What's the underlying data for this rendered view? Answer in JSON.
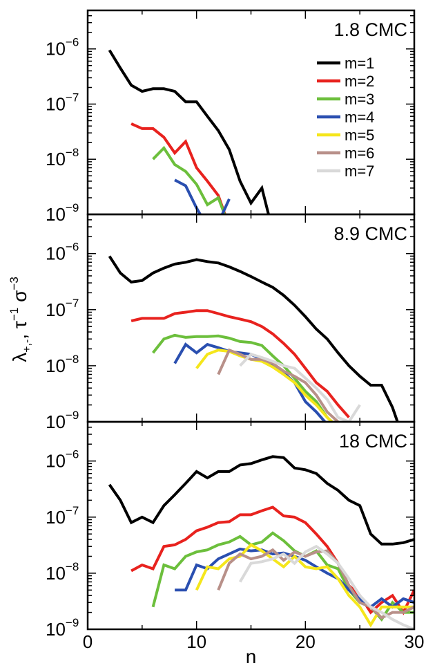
{
  "chart_data": {
    "type": "line",
    "xlabel": "n",
    "ylabel": {
      "base": "λ",
      "sub": "+,-",
      "unit1": "τ",
      "unit1_exp": "−1",
      "unit2": "σ",
      "unit2_exp": "−3"
    },
    "xlim": [
      0,
      30
    ],
    "xticks": [
      "0",
      "10",
      "20",
      "30"
    ],
    "ylim": [
      1e-09,
      5e-06
    ],
    "yscale": "log",
    "ytick_base": "10",
    "ytick_exponents": [
      "-9",
      "-8",
      "-7",
      "-6"
    ],
    "legend": {
      "placement": "top-right of top panel",
      "entries": [
        "m=1",
        "m=2",
        "m=3",
        "m=4",
        "m=5",
        "m=6",
        "m=7"
      ]
    },
    "series_colors": [
      "#000000",
      "#e8221e",
      "#6cbf3c",
      "#2a4fb0",
      "#f5e61b",
      "#b89089",
      "#d9d9d9"
    ],
    "panels": [
      {
        "label": "1.8 CMC",
        "series": [
          {
            "name": "m=1",
            "x": [
              2,
              3,
              4,
              5,
              6,
              7,
              8,
              9,
              10,
              11,
              12,
              13,
              14,
              15,
              16,
              17
            ],
            "y": [
              9.5e-07,
              4.5e-07,
              2.2e-07,
              1.7e-07,
              1.9e-07,
              1.9e-07,
              1.7e-07,
              1.1e-07,
              1.1e-07,
              6e-08,
              3.3e-08,
              1.5e-08,
              4e-09,
              1.6e-09,
              3e-09,
              5e-10
            ]
          },
          {
            "name": "m=2",
            "x": [
              4,
              5,
              6,
              7,
              8,
              9,
              10,
              11,
              12,
              13
            ],
            "y": [
              4.4e-08,
              3.6e-08,
              3.6e-08,
              2.5e-08,
              1.3e-08,
              2.1e-08,
              7e-09,
              4e-09,
              2.2e-09,
              6e-10
            ]
          },
          {
            "name": "m=3",
            "x": [
              6,
              7,
              8,
              9,
              10,
              11,
              12,
              13
            ],
            "y": [
              1e-08,
              1.6e-08,
              8e-09,
              6e-09,
              3.5e-09,
              1.5e-09,
              2e-09,
              6e-10
            ]
          },
          {
            "name": "m=4",
            "x": [
              8,
              9,
              10,
              11,
              12,
              13
            ],
            "y": [
              4.2e-09,
              3.3e-09,
              1.3e-09,
              6e-10,
              7e-10,
              1.9e-09
            ]
          }
        ]
      },
      {
        "label": "8.9 CMC",
        "series": [
          {
            "name": "m=1",
            "x": [
              2,
              3,
              4,
              5,
              6,
              7,
              8,
              9,
              10,
              11,
              12,
              13,
              14,
              15,
              16,
              17,
              18,
              19,
              20,
              21,
              22,
              23,
              24,
              25,
              26,
              27,
              28,
              29
            ],
            "y": [
              9e-07,
              4.5e-07,
              3.1e-07,
              3.3e-07,
              4.5e-07,
              5.5e-07,
              6.5e-07,
              7e-07,
              7.8e-07,
              7.2e-07,
              6.8e-07,
              5.8e-07,
              4.8e-07,
              3.9e-07,
              3.1e-07,
              2.5e-07,
              1.8e-07,
              1.2e-07,
              7.5e-08,
              4.5e-08,
              3e-08,
              1.7e-08,
              1e-08,
              6.5e-09,
              4.5e-09,
              4.5e-09,
              1.8e-09,
              5e-10
            ]
          },
          {
            "name": "m=2",
            "x": [
              4,
              5,
              6,
              7,
              8,
              9,
              10,
              11,
              12,
              13,
              14,
              15,
              16,
              17,
              18,
              19,
              20,
              21,
              22,
              23,
              24
            ],
            "y": [
              6.3e-08,
              7e-08,
              7e-08,
              7e-08,
              8.5e-08,
              9e-08,
              9.6e-08,
              9.6e-08,
              8.5e-08,
              7.5e-08,
              6.8e-08,
              6.1e-08,
              5e-08,
              3.7e-08,
              2.5e-08,
              1.6e-08,
              9e-09,
              5e-09,
              3.5e-09,
              2e-09,
              1.2e-09
            ]
          },
          {
            "name": "m=3",
            "x": [
              6,
              7,
              8,
              9,
              10,
              11,
              12,
              13,
              14,
              15,
              16,
              17,
              18,
              19,
              20,
              21,
              22,
              23
            ],
            "y": [
              1.7e-08,
              3e-08,
              3.5e-08,
              3.2e-08,
              3.3e-08,
              3.3e-08,
              3.4e-08,
              3.1e-08,
              2.7e-08,
              2.6e-08,
              2.3e-08,
              1.5e-08,
              1e-08,
              6e-09,
              3.5e-09,
              2.3e-09,
              1.2e-09,
              8e-10
            ]
          },
          {
            "name": "m=4",
            "x": [
              8,
              9,
              10,
              11,
              12,
              13,
              14,
              15,
              16,
              17,
              18,
              19,
              20,
              21,
              22
            ],
            "y": [
              1.1e-08,
              2.4e-08,
              1.7e-08,
              2.4e-08,
              2.1e-08,
              1.8e-08,
              1.7e-08,
              1.6e-08,
              1.3e-08,
              1e-08,
              7.5e-09,
              5e-09,
              2.3e-09,
              1.5e-09,
              9e-10
            ]
          },
          {
            "name": "m=5",
            "x": [
              10,
              11,
              12,
              13,
              14,
              15,
              16,
              17,
              18,
              19,
              20,
              21,
              22,
              23
            ],
            "y": [
              9e-09,
              1.6e-08,
              1.9e-08,
              1.8e-08,
              1.5e-08,
              1.3e-08,
              1.2e-08,
              9.5e-09,
              7e-09,
              5e-09,
              3e-09,
              2e-09,
              1.2e-09,
              8e-10
            ]
          },
          {
            "name": "m=6",
            "x": [
              12,
              13,
              14,
              15,
              16,
              17,
              18,
              19,
              20,
              21,
              22,
              23
            ],
            "y": [
              7e-09,
              1.9e-08,
              1.6e-08,
              1.3e-08,
              1.3e-08,
              1.1e-08,
              8e-09,
              6.5e-09,
              5e-09,
              3e-09,
              1.5e-09,
              1e-09
            ]
          },
          {
            "name": "m=7",
            "x": [
              14,
              15,
              16,
              17,
              18,
              19,
              20,
              21,
              22,
              23,
              24,
              25
            ],
            "y": [
              1e-08,
              1.6e-08,
              1.4e-08,
              1.2e-08,
              1e-08,
              9e-09,
              6e-09,
              4e-09,
              2.5e-09,
              1.2e-09,
              1e-09,
              2e-09
            ]
          }
        ]
      },
      {
        "label": "18 CMC",
        "series": [
          {
            "name": "m=1",
            "x": [
              2,
              3,
              4,
              5,
              6,
              7,
              8,
              9,
              10,
              11,
              12,
              13,
              14,
              15,
              16,
              17,
              18,
              19,
              20,
              21,
              22,
              23,
              24,
              25,
              26,
              27,
              28,
              29,
              30
            ],
            "y": [
              3.8e-07,
              2e-07,
              8e-08,
              1e-07,
              8e-08,
              1.6e-07,
              2.5e-07,
              4e-07,
              6.5e-07,
              5e-07,
              6.5e-07,
              6.5e-07,
              8.5e-07,
              9e-07,
              1.05e-06,
              1.2e-06,
              1.15e-06,
              7.5e-07,
              7e-07,
              6e-07,
              4e-07,
              3e-07,
              2e-07,
              1.6e-07,
              5e-08,
              3.3e-08,
              3.3e-08,
              3.5e-08,
              4e-08
            ]
          },
          {
            "name": "m=2",
            "x": [
              4,
              5,
              6,
              7,
              8,
              9,
              10,
              11,
              12,
              13,
              14,
              15,
              16,
              17,
              18,
              19,
              20,
              21,
              22,
              23,
              24,
              25,
              26,
              27,
              28,
              29,
              30
            ],
            "y": [
              1.1e-08,
              1.4e-08,
              1.2e-08,
              3e-08,
              3.2e-08,
              4e-08,
              5.7e-08,
              6.6e-08,
              8e-08,
              8.3e-08,
              1.1e-07,
              1.1e-07,
              1.3e-07,
              1.5e-07,
              1.05e-07,
              1e-07,
              8e-08,
              5e-08,
              3e-08,
              1.5e-08,
              6e-09,
              4e-09,
              2e-09,
              3e-09,
              4e-09,
              2e-09,
              5e-09
            ]
          },
          {
            "name": "m=3",
            "x": [
              6,
              7,
              8,
              9,
              10,
              11,
              12,
              13,
              14,
              15,
              16,
              17,
              18,
              19,
              20,
              21,
              22,
              23,
              24,
              25,
              26,
              27,
              28,
              29,
              30
            ],
            "y": [
              2.5e-09,
              1.4e-08,
              1.2e-08,
              2e-08,
              2.4e-08,
              2.6e-08,
              3.2e-08,
              3.6e-08,
              4.5e-08,
              3.2e-08,
              3.6e-08,
              5.2e-08,
              3.8e-08,
              2.5e-08,
              2e-08,
              2.5e-08,
              1.4e-08,
              1.2e-08,
              5e-09,
              3e-09,
              2.5e-09,
              1.5e-09,
              3e-09,
              2e-09,
              2e-09
            ]
          },
          {
            "name": "m=4",
            "x": [
              8,
              9,
              10,
              11,
              12,
              13,
              14,
              15,
              16,
              17,
              18,
              19,
              20,
              21,
              22,
              23,
              24,
              25,
              26,
              27,
              28,
              29,
              30
            ],
            "y": [
              5e-09,
              5e-09,
              1.4e-08,
              1.2e-08,
              1.8e-08,
              2.2e-08,
              2.7e-08,
              2.5e-08,
              2.6e-08,
              2.2e-08,
              2.3e-08,
              2e-08,
              1.7e-08,
              1.3e-08,
              1e-08,
              8e-09,
              5e-09,
              3.5e-09,
              2.5e-09,
              3.5e-09,
              2.5e-09,
              3.5e-09,
              3e-09
            ]
          },
          {
            "name": "m=5",
            "x": [
              10,
              11,
              12,
              13,
              14,
              15,
              16,
              17,
              18,
              19,
              20,
              21,
              22,
              23,
              24,
              25,
              26,
              27,
              28,
              29,
              30
            ],
            "y": [
              5e-09,
              1.3e-08,
              1.2e-08,
              1.8e-08,
              2e-08,
              3.2e-08,
              2.5e-08,
              1.8e-08,
              1.3e-08,
              2e-08,
              1.3e-08,
              1.2e-08,
              1.3e-08,
              8e-09,
              4e-09,
              2.5e-09,
              1.2e-09,
              2.5e-09,
              2.5e-09,
              2.5e-09,
              2.5e-09
            ]
          },
          {
            "name": "m=6",
            "x": [
              12,
              13,
              14,
              15,
              16,
              17,
              18,
              19,
              20,
              21,
              22,
              23,
              24,
              25,
              26,
              27,
              28,
              29,
              30
            ],
            "y": [
              5e-09,
              1.5e-08,
              2.2e-08,
              1.8e-08,
              2e-08,
              2.6e-08,
              1.7e-08,
              2.4e-08,
              2e-08,
              2.4e-08,
              2.5e-08,
              1.5e-08,
              6e-09,
              3e-09,
              2.5e-09,
              1.6e-09,
              2e-09,
              2e-09,
              2.5e-09
            ]
          },
          {
            "name": "m=7",
            "x": [
              14,
              15,
              16,
              17,
              18,
              19,
              20,
              21,
              22,
              23,
              24,
              25,
              26,
              27,
              28,
              29,
              30
            ],
            "y": [
              7e-09,
              1.5e-08,
              1.6e-08,
              1.8e-08,
              2.2e-08,
              1.5e-08,
              2.4e-08,
              3e-08,
              2.2e-08,
              1.5e-08,
              8e-09,
              4e-09,
              2.5e-09,
              2e-09,
              1.5e-09,
              1.2e-09,
              1e-09
            ]
          }
        ]
      }
    ]
  }
}
